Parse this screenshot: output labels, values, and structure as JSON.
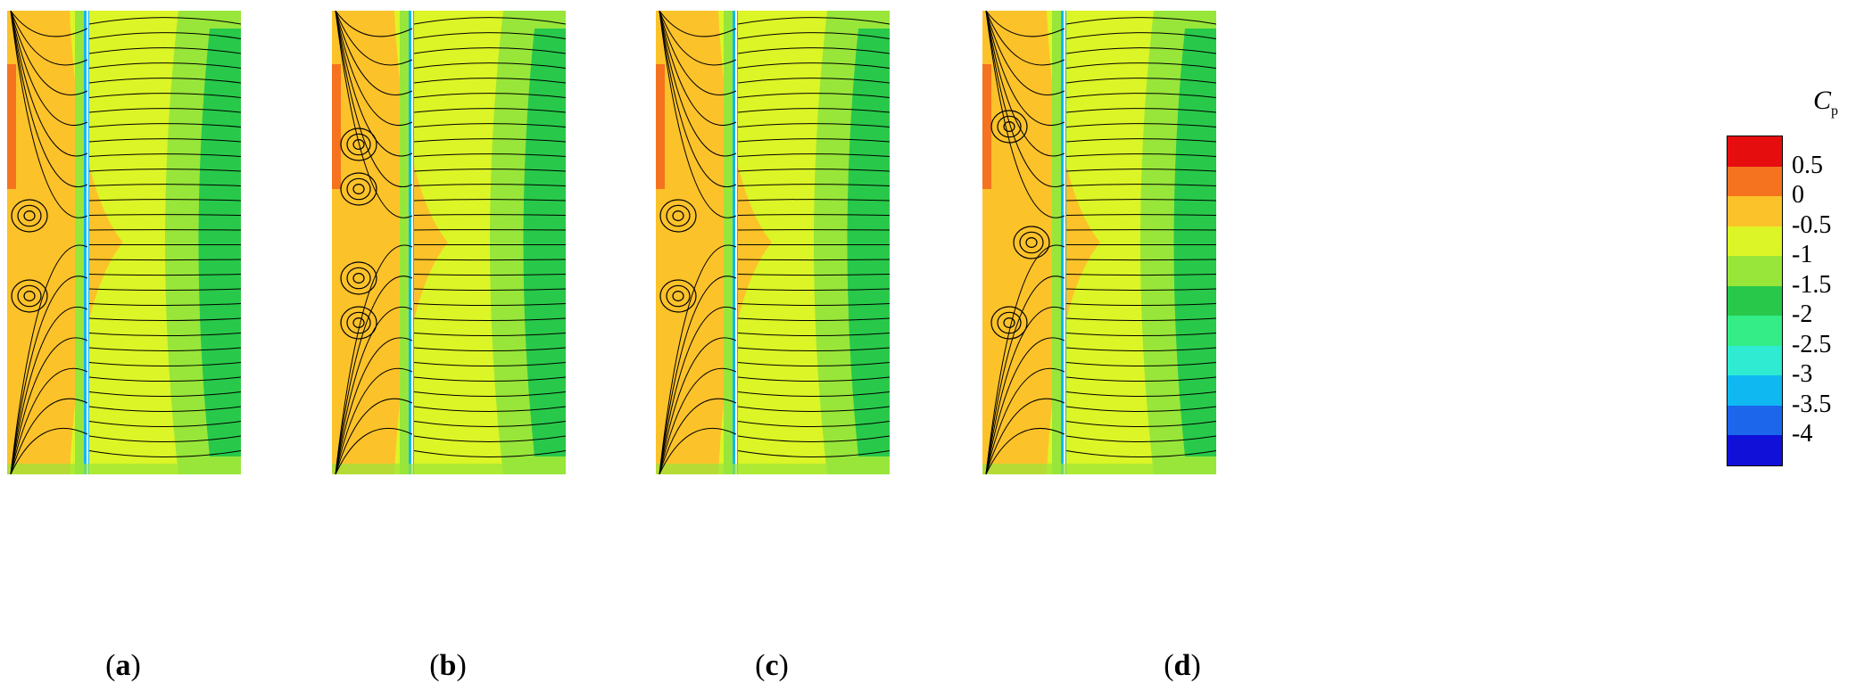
{
  "panels": [
    {
      "id": "a",
      "label": "a"
    },
    {
      "id": "b",
      "label": "b"
    },
    {
      "id": "c",
      "label": "c"
    },
    {
      "id": "d",
      "label": "d"
    }
  ],
  "legend": {
    "title_main": "C",
    "title_sub": "p",
    "colors": [
      "#e60d0f",
      "#f5731e",
      "#fcc22a",
      "#dcf526",
      "#98e63a",
      "#28c94a",
      "#34ed86",
      "#2eebd2",
      "#10b8f2",
      "#1b66eb",
      "#1010d8"
    ],
    "ticks": [
      "0.5",
      "0",
      "-0.5",
      "-1",
      "-1.5",
      "-2",
      "-2.5",
      "-3",
      "-3.5",
      "-4"
    ]
  }
}
